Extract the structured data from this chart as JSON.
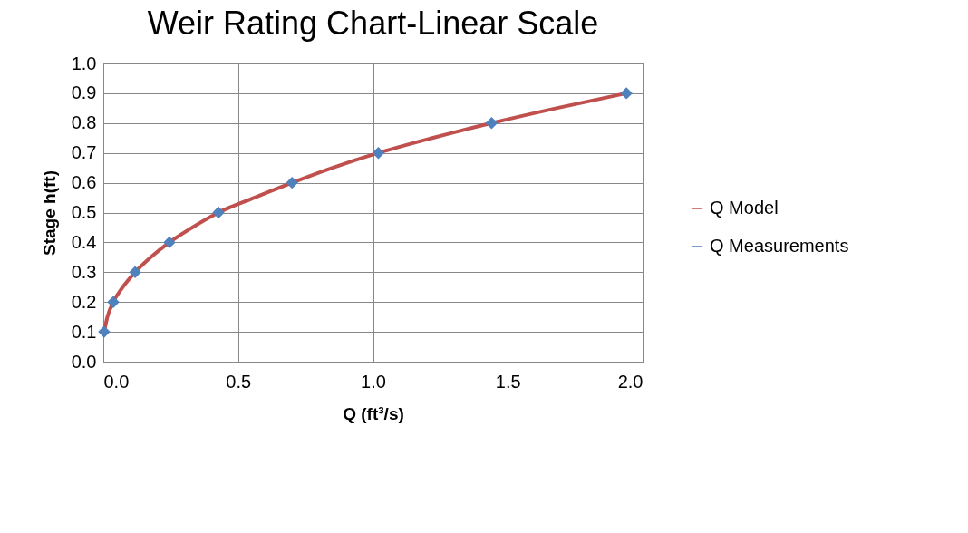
{
  "chart_data": {
    "type": "scatter",
    "title": "Weir Rating Chart-Linear Scale",
    "xlabel": "Q (ft³/s)",
    "ylabel": "Stage h(ft)",
    "xlim": [
      0,
      2
    ],
    "xticks": [
      {
        "value": 0,
        "label": "0.0"
      },
      {
        "value": 0.5,
        "label": "0.5"
      },
      {
        "value": 1,
        "label": "1.0"
      },
      {
        "value": 1.5,
        "label": "1.5"
      },
      {
        "value": 2,
        "label": "2.0"
      }
    ],
    "ylim": [
      0,
      1
    ],
    "yticks": [
      {
        "value": 0,
        "label": "0.0"
      },
      {
        "value": 0.1,
        "label": "0.1"
      },
      {
        "value": 0.2,
        "label": "0.2"
      },
      {
        "value": 0.3,
        "label": "0.3"
      },
      {
        "value": 0.4,
        "label": "0.4"
      },
      {
        "value": 0.5,
        "label": "0.5"
      },
      {
        "value": 0.6,
        "label": "0.6"
      },
      {
        "value": 0.7,
        "label": "0.7"
      },
      {
        "value": 0.8,
        "label": "0.8"
      },
      {
        "value": 0.9,
        "label": "0.9"
      },
      {
        "value": 1,
        "label": "1.0"
      }
    ],
    "grid": true,
    "legend": "right",
    "series": [
      {
        "name": "Q Model",
        "type": "line",
        "color": "#c0504d",
        "marker": "none",
        "line_style": "solid",
        "x": [
          0.003,
          0.015,
          0.037,
          0.072,
          0.118,
          0.176,
          0.245,
          0.33,
          0.427,
          0.56,
          0.7,
          0.85,
          1.02,
          1.22,
          1.44,
          1.68,
          1.94
        ],
        "values": [
          0.1,
          0.15,
          0.2,
          0.25,
          0.3,
          0.35,
          0.4,
          0.45,
          0.5,
          0.55,
          0.6,
          0.65,
          0.7,
          0.75,
          0.8,
          0.85,
          0.9
        ]
      },
      {
        "name": "Q Measurements",
        "color": "#4f81bd",
        "marker": "diamond",
        "x": [
          0.003,
          0.037,
          0.118,
          0.245,
          0.427,
          0.7,
          1.02,
          1.44,
          1.94
        ],
        "values": [
          0.1,
          0.2,
          0.3,
          0.4,
          0.5,
          0.6,
          0.7,
          0.8,
          0.9
        ]
      }
    ]
  }
}
